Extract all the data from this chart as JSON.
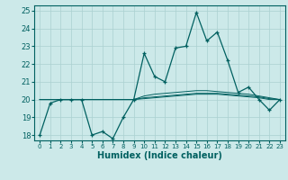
{
  "xlabel": "Humidex (Indice chaleur)",
  "background_color": "#cce9e9",
  "grid_color": "#aad0d0",
  "line_color": "#006060",
  "xlim": [
    -0.5,
    23.5
  ],
  "ylim": [
    17.7,
    25.3
  ],
  "yticks": [
    18,
    19,
    20,
    21,
    22,
    23,
    24,
    25
  ],
  "xticks": [
    0,
    1,
    2,
    3,
    4,
    5,
    6,
    7,
    8,
    9,
    10,
    11,
    12,
    13,
    14,
    15,
    16,
    17,
    18,
    19,
    20,
    21,
    22,
    23
  ],
  "main_line_x": [
    0,
    1,
    2,
    3,
    4,
    5,
    6,
    7,
    8,
    9,
    10,
    11,
    12,
    13,
    14,
    15,
    16,
    17,
    18,
    19,
    20,
    21,
    22,
    23
  ],
  "main_line_y": [
    18.0,
    19.8,
    20.0,
    20.0,
    20.0,
    18.0,
    18.2,
    17.8,
    19.0,
    20.0,
    22.6,
    21.3,
    21.0,
    22.9,
    23.0,
    24.9,
    23.3,
    23.8,
    22.2,
    20.4,
    20.7,
    20.0,
    19.4,
    20.0
  ],
  "flat_lines": [
    [
      20.0,
      20.0,
      20.0,
      20.0,
      20.0,
      20.0,
      20.0,
      20.0,
      20.0,
      20.0,
      20.1,
      20.15,
      20.2,
      20.25,
      20.3,
      20.35,
      20.35,
      20.35,
      20.3,
      20.25,
      20.2,
      20.15,
      20.05,
      20.0
    ],
    [
      20.0,
      20.0,
      20.0,
      20.0,
      20.0,
      20.0,
      20.0,
      20.0,
      20.0,
      20.0,
      20.2,
      20.3,
      20.35,
      20.4,
      20.45,
      20.5,
      20.5,
      20.45,
      20.4,
      20.35,
      20.3,
      20.2,
      20.1,
      20.0
    ],
    [
      20.0,
      20.0,
      20.0,
      20.0,
      20.0,
      20.0,
      20.0,
      20.0,
      20.0,
      20.0,
      20.05,
      20.1,
      20.15,
      20.2,
      20.25,
      20.3,
      20.3,
      20.3,
      20.25,
      20.2,
      20.15,
      20.1,
      20.0,
      20.0
    ]
  ],
  "xlabel_fontsize": 7,
  "xtick_fontsize": 5,
  "ytick_fontsize": 6
}
